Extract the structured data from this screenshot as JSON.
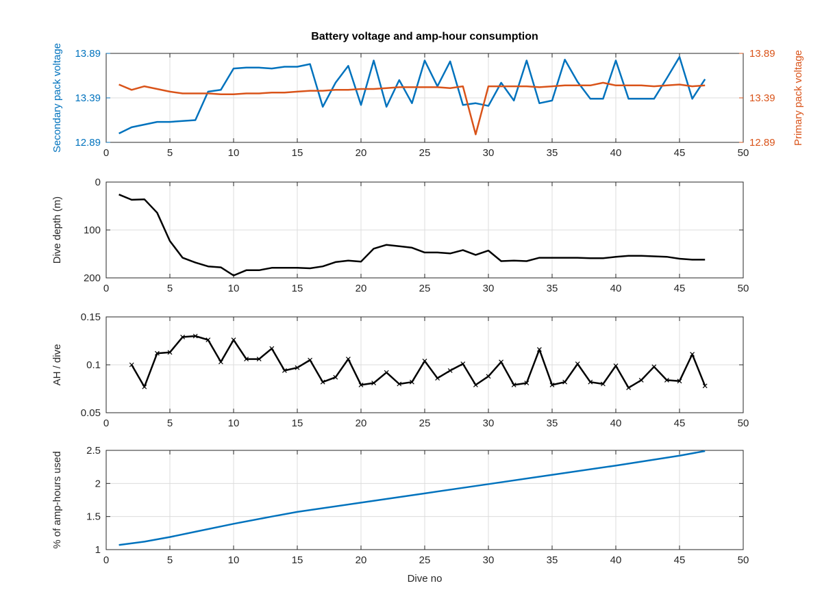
{
  "chart_data": [
    {
      "type": "line",
      "title": "Battery voltage and amp-hour consumption",
      "xlabel": "",
      "ylabel": "Secondary pack voltage",
      "ylabel_right": "Primary pack voltage",
      "xlim": [
        0,
        50
      ],
      "ylim": [
        12.89,
        13.89
      ],
      "ylim_right": [
        12.89,
        13.89
      ],
      "xticks": [
        "0",
        "5",
        "10",
        "15",
        "20",
        "25",
        "30",
        "35",
        "40",
        "45",
        "50"
      ],
      "yticks": [
        "12.89",
        "13.39",
        "13.89"
      ],
      "yticks_right": [
        "12.89",
        "13.39",
        "13.89"
      ],
      "grid": true,
      "series": [
        {
          "axis": "left",
          "color": "#0072bd",
          "x": [
            1,
            2,
            3,
            4,
            5,
            6,
            7,
            8,
            9,
            10,
            11,
            12,
            13,
            14,
            15,
            16,
            17,
            18,
            19,
            20,
            21,
            22,
            23,
            24,
            25,
            26,
            27,
            28,
            29,
            30,
            31,
            32,
            33,
            34,
            35,
            36,
            37,
            38,
            39,
            40,
            41,
            42,
            43,
            44,
            45,
            46,
            47
          ],
          "values": [
            12.99,
            13.06,
            13.09,
            13.12,
            13.12,
            13.13,
            13.14,
            13.46,
            13.48,
            13.72,
            13.73,
            13.73,
            13.72,
            13.74,
            13.74,
            13.77,
            13.29,
            13.56,
            13.75,
            13.31,
            13.81,
            13.29,
            13.59,
            13.33,
            13.81,
            13.52,
            13.8,
            13.31,
            13.33,
            13.3,
            13.56,
            13.36,
            13.81,
            13.33,
            13.36,
            13.82,
            13.57,
            13.38,
            13.38,
            13.81,
            13.38,
            13.38,
            13.38,
            13.61,
            13.85,
            13.38,
            13.6
          ]
        },
        {
          "axis": "right",
          "color": "#d95319",
          "x": [
            1,
            2,
            3,
            4,
            5,
            6,
            7,
            8,
            9,
            10,
            11,
            12,
            13,
            14,
            15,
            16,
            17,
            18,
            19,
            20,
            21,
            22,
            23,
            24,
            25,
            26,
            27,
            28,
            29,
            30,
            31,
            32,
            33,
            34,
            35,
            36,
            37,
            38,
            39,
            40,
            41,
            42,
            43,
            44,
            45,
            46,
            47
          ],
          "values": [
            13.54,
            13.48,
            13.52,
            13.49,
            13.46,
            13.44,
            13.44,
            13.44,
            13.43,
            13.43,
            13.44,
            13.44,
            13.45,
            13.45,
            13.46,
            13.47,
            13.47,
            13.48,
            13.48,
            13.49,
            13.49,
            13.5,
            13.51,
            13.51,
            13.51,
            13.51,
            13.5,
            13.52,
            12.98,
            13.52,
            13.52,
            13.52,
            13.52,
            13.51,
            13.52,
            13.53,
            13.53,
            13.53,
            13.56,
            13.53,
            13.53,
            13.53,
            13.52,
            13.53,
            13.54,
            13.52,
            13.53
          ]
        }
      ]
    },
    {
      "type": "line",
      "title": "",
      "xlabel": "",
      "ylabel": "Dive depth (m)",
      "xlim": [
        0,
        50
      ],
      "ylim": [
        0,
        200
      ],
      "y_reversed": true,
      "xticks": [
        "0",
        "5",
        "10",
        "15",
        "20",
        "25",
        "30",
        "35",
        "40",
        "45",
        "50"
      ],
      "yticks": [
        "0",
        "100",
        "200"
      ],
      "grid": true,
      "series": [
        {
          "color": "#000000",
          "x": [
            1,
            2,
            3,
            4,
            5,
            6,
            7,
            8,
            9,
            10,
            11,
            12,
            13,
            14,
            15,
            16,
            17,
            18,
            19,
            20,
            21,
            22,
            23,
            24,
            25,
            26,
            27,
            28,
            29,
            30,
            31,
            32,
            33,
            34,
            35,
            36,
            37,
            38,
            39,
            40,
            41,
            42,
            43,
            44,
            45,
            46,
            47
          ],
          "values": [
            26,
            37,
            36,
            64,
            123,
            158,
            168,
            176,
            178,
            195,
            184,
            184,
            179,
            179,
            179,
            180,
            176,
            167,
            164,
            166,
            139,
            131,
            134,
            137,
            147,
            147,
            149,
            142,
            152,
            143,
            165,
            164,
            165,
            158,
            158,
            158,
            158,
            159,
            159,
            156,
            154,
            154,
            155,
            156,
            160,
            162,
            162
          ]
        }
      ]
    },
    {
      "type": "line",
      "title": "",
      "xlabel": "",
      "ylabel": "AH / dive",
      "xlim": [
        0,
        50
      ],
      "ylim": [
        0.05,
        0.15
      ],
      "xticks": [
        "0",
        "5",
        "10",
        "15",
        "20",
        "25",
        "30",
        "35",
        "40",
        "45",
        "50"
      ],
      "yticks": [
        "0.05",
        "0.1",
        "0.15"
      ],
      "grid": true,
      "markers": "x",
      "series": [
        {
          "color": "#000000",
          "x": [
            2,
            3,
            4,
            5,
            6,
            7,
            8,
            9,
            10,
            11,
            12,
            13,
            14,
            15,
            16,
            17,
            18,
            19,
            20,
            21,
            22,
            23,
            24,
            25,
            26,
            27,
            28,
            29,
            30,
            31,
            32,
            33,
            34,
            35,
            36,
            37,
            38,
            39,
            40,
            41,
            42,
            43,
            44,
            45,
            46,
            47
          ],
          "values": [
            0.1,
            0.077,
            0.112,
            0.113,
            0.129,
            0.13,
            0.126,
            0.103,
            0.126,
            0.106,
            0.106,
            0.117,
            0.094,
            0.097,
            0.105,
            0.082,
            0.087,
            0.106,
            0.079,
            0.081,
            0.092,
            0.08,
            0.082,
            0.104,
            0.086,
            0.094,
            0.101,
            0.079,
            0.088,
            0.103,
            0.079,
            0.081,
            0.116,
            0.079,
            0.082,
            0.101,
            0.082,
            0.08,
            0.099,
            0.076,
            0.084,
            0.098,
            0.084,
            0.083,
            0.111,
            0.078
          ]
        }
      ]
    },
    {
      "type": "line",
      "title": "",
      "xlabel": "Dive no",
      "ylabel": "% of amp-hours used",
      "xlim": [
        0,
        50
      ],
      "ylim": [
        1,
        2.5
      ],
      "xticks": [
        "0",
        "5",
        "10",
        "15",
        "20",
        "25",
        "30",
        "35",
        "40",
        "45",
        "50"
      ],
      "yticks": [
        "1",
        "1.5",
        "2",
        "2.5"
      ],
      "grid": true,
      "series": [
        {
          "color": "#0072bd",
          "x": [
            1,
            3,
            5,
            7,
            10,
            13,
            15,
            20,
            25,
            30,
            35,
            40,
            45,
            47
          ],
          "values": [
            1.07,
            1.12,
            1.19,
            1.27,
            1.39,
            1.5,
            1.57,
            1.71,
            1.85,
            1.99,
            2.13,
            2.27,
            2.42,
            2.49
          ]
        }
      ]
    }
  ]
}
